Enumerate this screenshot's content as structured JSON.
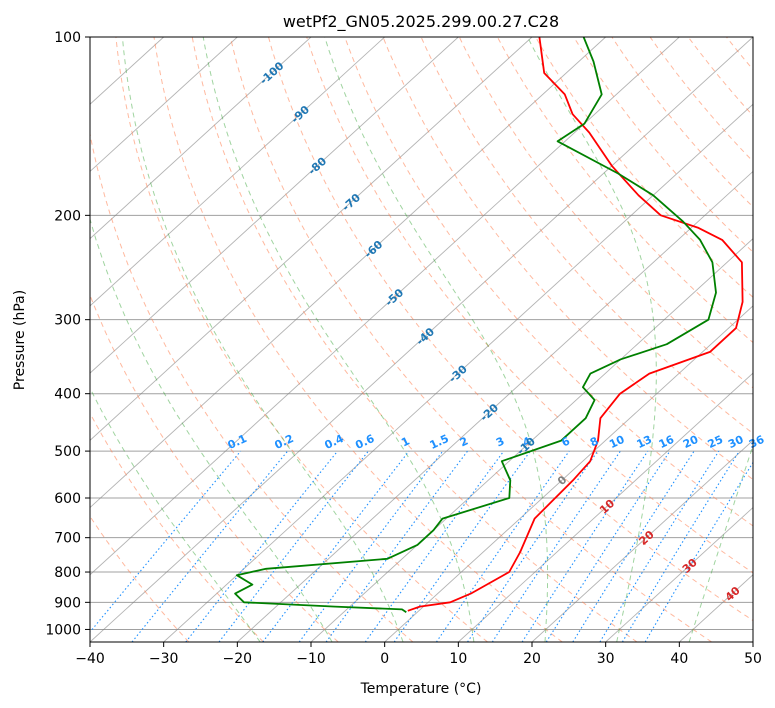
{
  "chart_data": {
    "type": "line",
    "title": "wetPf2_GN05.2025.299.00.27.C28",
    "xlabel": "Temperature (°C)",
    "ylabel": "Pressure (hPa)",
    "xlim": [
      -40,
      50
    ],
    "ylim": [
      1050,
      100
    ],
    "y_scale": "log",
    "x_ticks": [
      -40,
      -30,
      -20,
      -10,
      0,
      10,
      20,
      30,
      40,
      50
    ],
    "y_ticks": [
      100,
      200,
      300,
      400,
      500,
      600,
      700,
      800,
      900,
      1000
    ],
    "grid": true,
    "skew": true,
    "series": [
      {
        "role": "temperature",
        "color": "#ff0000",
        "points": [
          [
            -1.5,
            930
          ],
          [
            -0.5,
            915
          ],
          [
            3.0,
            900
          ],
          [
            4.5,
            870
          ],
          [
            6.5,
            800
          ],
          [
            5.0,
            740
          ],
          [
            2.0,
            650
          ],
          [
            1.5,
            560
          ],
          [
            1.0,
            520
          ],
          [
            -1.0,
            480
          ],
          [
            -4.0,
            440
          ],
          [
            -5.0,
            400
          ],
          [
            -4.0,
            370
          ],
          [
            1.0,
            340
          ],
          [
            1.0,
            310
          ],
          [
            -2.0,
            280
          ],
          [
            -8.0,
            240
          ],
          [
            -14.0,
            220
          ],
          [
            -19.0,
            210
          ],
          [
            -26.0,
            200
          ],
          [
            -32.0,
            185
          ],
          [
            -40.0,
            165
          ],
          [
            -48.0,
            145
          ],
          [
            -53.0,
            135
          ],
          [
            -57.0,
            125
          ],
          [
            -63.0,
            115
          ],
          [
            -69.0,
            100
          ]
        ]
      },
      {
        "role": "dewpoint",
        "color": "#008000",
        "points": [
          [
            -1.5,
            935
          ],
          [
            -2.5,
            925
          ],
          [
            -12.0,
            915
          ],
          [
            -25.0,
            900
          ],
          [
            -27.5,
            870
          ],
          [
            -26.5,
            840
          ],
          [
            -30.0,
            810
          ],
          [
            -27.0,
            790
          ],
          [
            -12.0,
            760
          ],
          [
            -10.0,
            720
          ],
          [
            -10.0,
            680
          ],
          [
            -10.5,
            650
          ],
          [
            -4.5,
            600
          ],
          [
            -7.0,
            560
          ],
          [
            -11.0,
            520
          ],
          [
            -6.0,
            480
          ],
          [
            -6.0,
            440
          ],
          [
            -7.5,
            410
          ],
          [
            -11.0,
            390
          ],
          [
            -12.0,
            370
          ],
          [
            -10.0,
            350
          ],
          [
            -6.0,
            330
          ],
          [
            -4.0,
            300
          ],
          [
            -7.0,
            270
          ],
          [
            -12.0,
            240
          ],
          [
            -17.0,
            220
          ],
          [
            -22.0,
            205
          ],
          [
            -30.0,
            185
          ],
          [
            -38.0,
            170
          ],
          [
            -51.0,
            150
          ],
          [
            -50.0,
            140
          ],
          [
            -52.0,
            125
          ],
          [
            -58.0,
            110
          ],
          [
            -63.0,
            100
          ]
        ]
      }
    ],
    "dry_adiabats": [
      -30,
      -20,
      -10,
      0,
      10,
      20,
      30,
      40,
      50,
      60,
      70,
      80,
      90,
      100,
      110,
      120,
      130,
      140,
      150,
      160,
      170
    ],
    "moist_adiabats": [
      -20,
      -10,
      0,
      10,
      20,
      30,
      40
    ],
    "moist_adiabat_labels": [
      {
        "text": "-100",
        "t": -100,
        "p": 115
      },
      {
        "text": "-90",
        "t": -90,
        "p": 135
      },
      {
        "text": "-80",
        "t": -80,
        "p": 165
      },
      {
        "text": "-70",
        "t": -70,
        "p": 190
      },
      {
        "text": "-60",
        "t": -60,
        "p": 228
      },
      {
        "text": "-50",
        "t": -50,
        "p": 275
      },
      {
        "text": "-40",
        "t": -40,
        "p": 320
      },
      {
        "text": "-30",
        "t": -30,
        "p": 370
      },
      {
        "text": "-20",
        "t": -20,
        "p": 430
      },
      {
        "text": "-10",
        "t": -10,
        "p": 490
      }
    ],
    "mixing_ratios": [
      0.1,
      0.2,
      0.4,
      0.6,
      1,
      1.5,
      2,
      3,
      4,
      6,
      8,
      10,
      13,
      16,
      20,
      25,
      30,
      36
    ],
    "mixing_ratio_labels": [
      "0.1",
      "0.2",
      "0.4",
      "0.6",
      "1",
      "1.5",
      "2",
      "3",
      "4",
      "6",
      "8",
      "10",
      "13",
      "16",
      "20",
      "25",
      "30",
      "36"
    ],
    "temp_labels": [
      {
        "text": "0",
        "color": "#808080",
        "t": 0,
        "p": 560
      },
      {
        "text": "10",
        "color": "#d62728",
        "t": 10,
        "p": 620
      },
      {
        "text": "20",
        "color": "#d62728",
        "t": 20,
        "p": 700
      },
      {
        "text": "30",
        "color": "#d62728",
        "t": 30,
        "p": 780
      },
      {
        "text": "40",
        "color": "#d62728",
        "t": 40,
        "p": 870
      }
    ],
    "colors": {
      "temperature": "#ff0000",
      "dewpoint": "#008000",
      "isotherm": "#808080",
      "dry_adiabat": "#ff7f50",
      "moist_adiabat": "#2ca02c",
      "mixing_ratio": "#1e90ff",
      "isobar": "#a0a0a0",
      "moist_label": "#1f77b4",
      "temp_label": "#d62728"
    }
  }
}
